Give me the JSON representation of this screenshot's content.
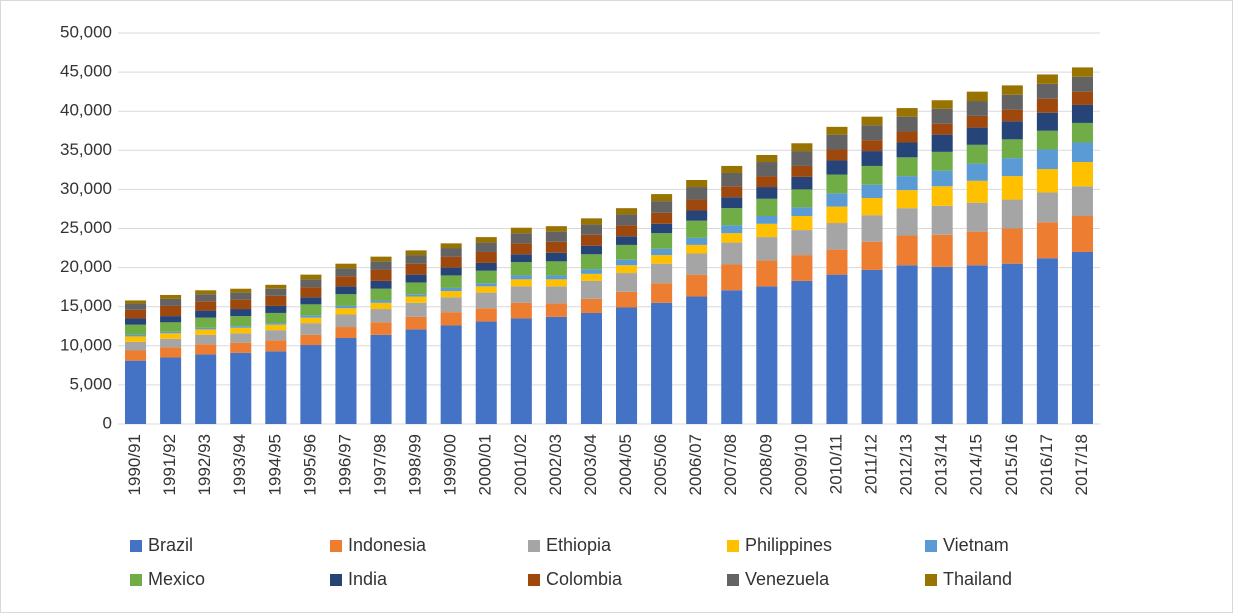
{
  "chart_data": {
    "type": "stacked_bar",
    "categories": [
      "1990/91",
      "1991/92",
      "1992/93",
      "1993/94",
      "1994/95",
      "1995/96",
      "1996/97",
      "1997/98",
      "1998/99",
      "1999/00",
      "2000/01",
      "2001/02",
      "2002/03",
      "2003/04",
      "2004/05",
      "2005/06",
      "2006/07",
      "2007/08",
      "2008/09",
      "2009/10",
      "2010/11",
      "2011/12",
      "2012/13",
      "2013/14",
      "2014/15",
      "2015/16",
      "2016/17",
      "2017/18"
    ],
    "series": [
      {
        "name": "Brazil",
        "color": "#4472c4",
        "values": [
          8100,
          8500,
          8900,
          9100,
          9300,
          10100,
          11000,
          11400,
          12100,
          12600,
          13100,
          13500,
          13700,
          14200,
          14900,
          15500,
          16300,
          17100,
          17600,
          18300,
          19100,
          19700,
          20300,
          20100,
          20300,
          20500,
          21200,
          22000
        ]
      },
      {
        "name": "Indonesia",
        "color": "#ed7d31",
        "values": [
          1300,
          1300,
          1300,
          1300,
          1400,
          1300,
          1400,
          1600,
          1600,
          1700,
          1700,
          2000,
          1700,
          1800,
          2000,
          2500,
          2800,
          3300,
          3300,
          3300,
          3200,
          3600,
          3800,
          4100,
          4300,
          4500,
          4600,
          4600
        ]
      },
      {
        "name": "Ethiopia",
        "color": "#a5a5a5",
        "values": [
          1100,
          1100,
          1200,
          1200,
          1300,
          1500,
          1600,
          1700,
          1800,
          1900,
          2000,
          2100,
          2200,
          2300,
          2400,
          2500,
          2700,
          2800,
          3000,
          3200,
          3400,
          3400,
          3500,
          3700,
          3700,
          3700,
          3800,
          3800
        ]
      },
      {
        "name": "Philippines",
        "color": "#ffc000",
        "values": [
          700,
          700,
          700,
          700,
          700,
          700,
          800,
          800,
          800,
          800,
          800,
          900,
          900,
          900,
          1000,
          1100,
          1100,
          1200,
          1700,
          1800,
          2100,
          2200,
          2300,
          2500,
          2800,
          3000,
          3000,
          3100
        ]
      },
      {
        "name": "Vietnam",
        "color": "#5b9bd5",
        "values": [
          200,
          200,
          200,
          200,
          200,
          300,
          300,
          300,
          300,
          400,
          400,
          500,
          500,
          600,
          700,
          800,
          900,
          1000,
          1000,
          1100,
          1700,
          1700,
          1800,
          2000,
          2200,
          2300,
          2500,
          2500
        ]
      },
      {
        "name": "Mexico",
        "color": "#70ad47",
        "values": [
          1300,
          1200,
          1300,
          1300,
          1300,
          1400,
          1500,
          1500,
          1500,
          1600,
          1600,
          1700,
          1800,
          1900,
          1900,
          2000,
          2200,
          2200,
          2200,
          2300,
          2400,
          2400,
          2400,
          2400,
          2400,
          2400,
          2400,
          2500
        ]
      },
      {
        "name": "India",
        "color": "#264478",
        "values": [
          800,
          800,
          900,
          900,
          900,
          900,
          1000,
          1000,
          1000,
          1000,
          1000,
          1000,
          1100,
          1100,
          1100,
          1200,
          1300,
          1400,
          1500,
          1600,
          1800,
          1900,
          1900,
          2200,
          2200,
          2300,
          2300,
          2300
        ]
      },
      {
        "name": "Colombia",
        "color": "#9e480e",
        "values": [
          1100,
          1300,
          1200,
          1200,
          1300,
          1300,
          1300,
          1400,
          1400,
          1400,
          1400,
          1400,
          1400,
          1400,
          1400,
          1400,
          1400,
          1400,
          1400,
          1400,
          1400,
          1400,
          1400,
          1400,
          1500,
          1500,
          1800,
          1700
        ]
      },
      {
        "name": "Venezuela",
        "color": "#636363",
        "values": [
          800,
          900,
          900,
          900,
          900,
          1000,
          1000,
          1100,
          1100,
          1100,
          1200,
          1300,
          1300,
          1300,
          1400,
          1500,
          1600,
          1700,
          1800,
          1900,
          1900,
          1900,
          1900,
          1900,
          1900,
          1900,
          1900,
          1900
        ]
      },
      {
        "name": "Thailand",
        "color": "#997300",
        "values": [
          400,
          500,
          500,
          500,
          500,
          600,
          600,
          600,
          600,
          600,
          700,
          700,
          700,
          800,
          800,
          900,
          900,
          900,
          900,
          1000,
          1000,
          1100,
          1100,
          1100,
          1200,
          1200,
          1200,
          1200
        ]
      }
    ],
    "ylim": [
      0,
      50000
    ],
    "yticks": [
      0,
      {
        "value": 5000,
        "label": "5,000"
      },
      {
        "value": 10000,
        "label": "10,000"
      },
      {
        "value": 15000,
        "label": "15,000"
      },
      {
        "value": 20000,
        "label": "20,000"
      },
      {
        "value": 25000,
        "label": "25,000"
      },
      {
        "value": 30000,
        "label": "30,000"
      },
      {
        "value": 35000,
        "label": "35,000"
      },
      {
        "value": 40000,
        "label": "40,000"
      },
      {
        "value": 45000,
        "label": "45,000"
      },
      {
        "value": 50000,
        "label": "50,000"
      }
    ],
    "grid": true,
    "legend": "bottom"
  }
}
